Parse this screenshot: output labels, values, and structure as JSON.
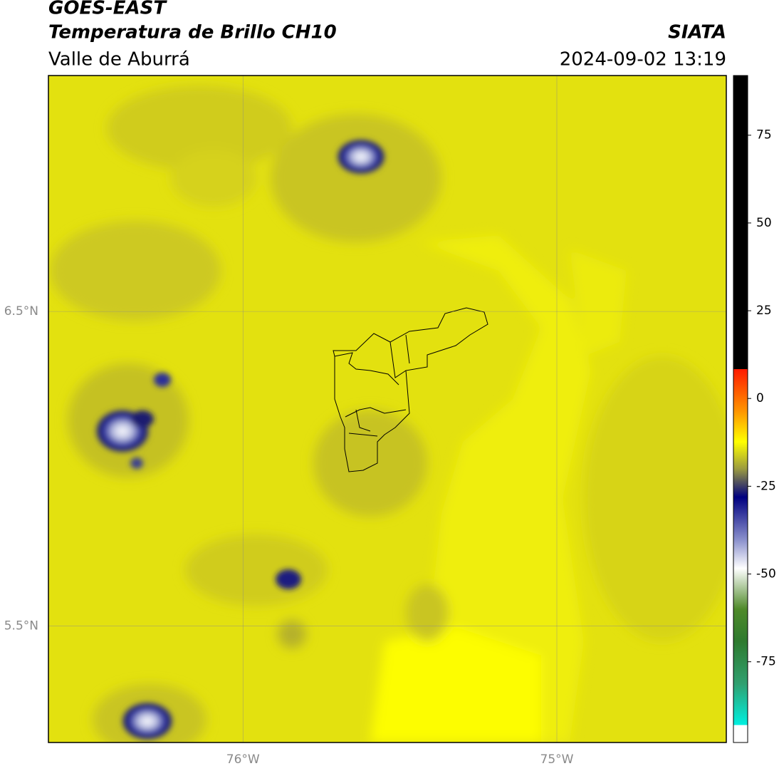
{
  "header": {
    "title": "GOES-EAST",
    "subtitle": "Temperatura de Brillo CH10",
    "region": "Valle de Aburrá",
    "source": "SIATA",
    "datetime": "2024-09-02 13:19"
  },
  "map": {
    "xlim": [
      -76.62,
      -74.46
    ],
    "ylim": [
      5.13,
      7.25
    ],
    "xticks": [
      {
        "value": -76,
        "label": "76°W"
      },
      {
        "value": -75,
        "label": "75°W"
      }
    ],
    "yticks": [
      {
        "value": 6.5,
        "label": "6.5°N"
      },
      {
        "value": 5.5,
        "label": "5.5°N"
      }
    ],
    "grid": true
  },
  "colorbar": {
    "clim": [
      -98,
      92
    ],
    "ticks": [
      75,
      50,
      25,
      0,
      -25,
      -50,
      -75
    ]
  }
}
